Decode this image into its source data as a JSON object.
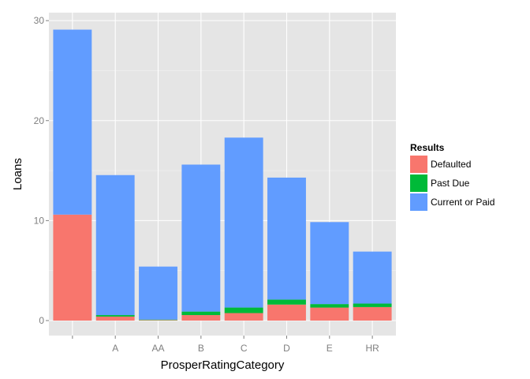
{
  "chart_data": {
    "type": "bar",
    "stacked": true,
    "categories": [
      "",
      "A",
      "AA",
      "B",
      "C",
      "D",
      "E",
      "HR"
    ],
    "series": [
      {
        "name": "Defaulted",
        "color": "#F8766D",
        "values": [
          10.6,
          0.4,
          0.05,
          0.55,
          0.75,
          1.6,
          1.3,
          1.35
        ]
      },
      {
        "name": "Past Due",
        "color": "#00BA38",
        "values": [
          0.0,
          0.15,
          0.05,
          0.35,
          0.55,
          0.5,
          0.35,
          0.35
        ]
      },
      {
        "name": "Current or Paid",
        "color": "#619CFF",
        "values": [
          18.5,
          14.0,
          5.3,
          14.7,
          17.0,
          12.2,
          8.2,
          5.2
        ]
      }
    ],
    "xlabel": "ProsperRatingCategory",
    "ylabel": "Loans",
    "ylim": [
      -1.5,
      30.8
    ],
    "yticks": [
      0,
      10,
      20,
      30
    ],
    "grid": true,
    "legend": {
      "title": "Results",
      "position": "right"
    },
    "panel_background": "#E5E5E5",
    "grid_color": "#FFFFFF"
  }
}
